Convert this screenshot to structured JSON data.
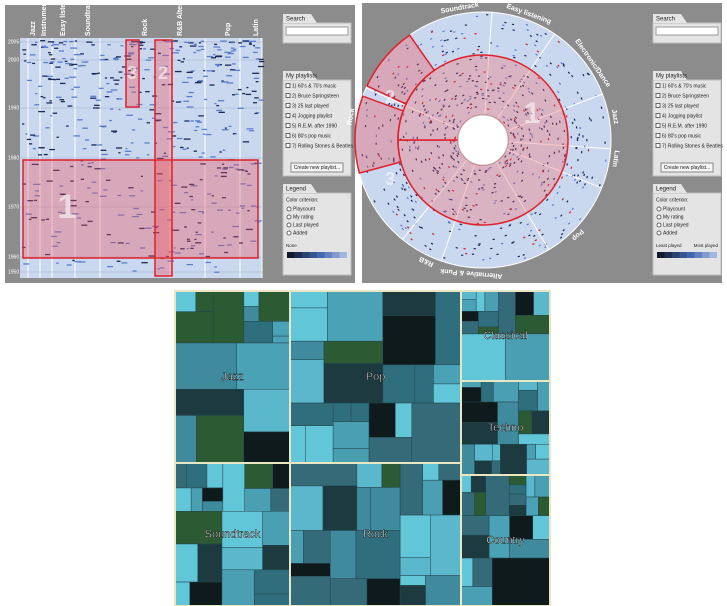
{
  "timeline_view": {
    "genres": [
      "Jazz",
      "Instrumental Dance",
      "Easy listening",
      "Soundtrack",
      "Rock",
      "R&B Alternative & Punk",
      "Pop",
      "Latin"
    ],
    "years": [
      "2005",
      "2000",
      "1990",
      "1980",
      "1970",
      "1960",
      "1950"
    ],
    "selections": [
      "1",
      "2",
      "3"
    ],
    "sidebar": {
      "search": "Search",
      "playlists_title": "My playlists",
      "playlists": [
        "1) 60's & 70's music",
        "2) Bruce Springsteen",
        "3) 25 last played",
        "4) Jogging playlist",
        "5) R.E.M. after 1990",
        "6) 80's pop music",
        "7) Rolling Stones & Beatles"
      ],
      "create_button": "Create new playlist...",
      "legend_title": "Legend",
      "criterion_label": "Color criterion:",
      "criteria": [
        "Playcount",
        "My rating",
        "Last played",
        "Added"
      ],
      "scale_labels": [
        "None"
      ]
    }
  },
  "radial_view": {
    "genres": [
      "Soundtrack",
      "Easy listening",
      "Electronic/Dance",
      "Jazz",
      "Latin",
      "Pop",
      "Alternative & Punk",
      "R&B",
      "Rock"
    ],
    "selections": [
      "1",
      "2",
      "3"
    ],
    "sidebar": {
      "search": "Search",
      "playlists_title": "My playlists",
      "playlists": [
        "1) 60's & 70's music",
        "2) Bruce Springsteen",
        "3) 25 last played",
        "4) Jogging playlist",
        "5) R.E.M. after 1990",
        "6) 80's pop music",
        "7) Rolling Stones & Beatles"
      ],
      "create_button": "Create new playlist...",
      "legend_title": "Legend",
      "criterion_label": "Color criterion:",
      "criteria": [
        "Playcount",
        "My rating",
        "Last played",
        "Added"
      ],
      "scale_labels": [
        "Least played",
        "Most played"
      ]
    }
  },
  "treemap_view": {
    "genres": [
      "Jazz",
      "Pop",
      "Classical",
      "Techno",
      "Soundtrack",
      "Rock",
      "Country"
    ]
  }
}
